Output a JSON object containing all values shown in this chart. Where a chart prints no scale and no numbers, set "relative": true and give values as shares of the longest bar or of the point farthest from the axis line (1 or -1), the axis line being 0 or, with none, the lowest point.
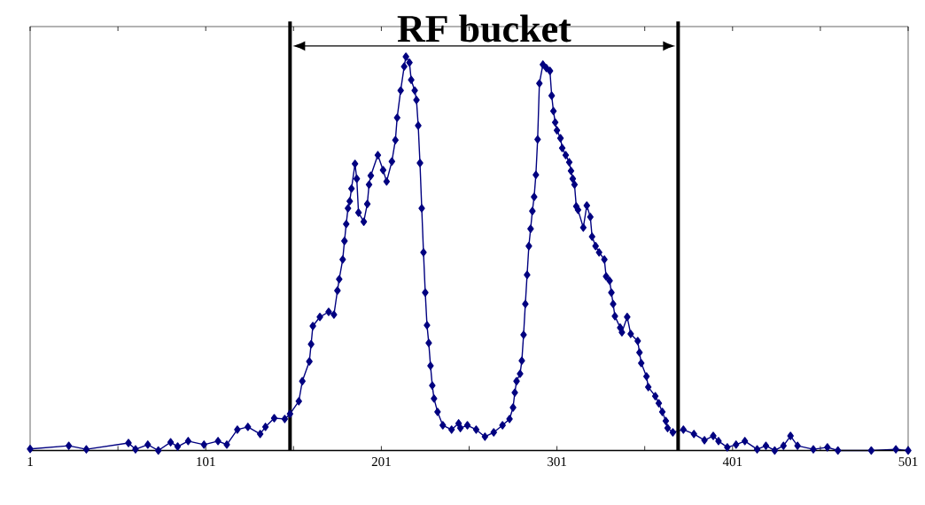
{
  "chart_data": {
    "type": "line",
    "relative": true,
    "x": [
      1,
      23,
      33,
      57,
      61,
      68,
      74,
      81,
      85,
      91,
      100,
      108,
      113,
      119,
      125,
      132,
      135,
      140,
      146,
      149,
      154,
      156,
      160,
      161,
      162,
      166,
      171,
      174,
      176,
      177,
      179,
      180,
      181,
      182,
      183,
      184,
      186,
      187,
      188,
      191,
      193,
      194,
      195,
      199,
      202,
      204,
      207,
      209,
      210,
      212,
      214,
      215,
      217,
      218,
      220,
      221,
      222,
      223,
      224,
      225,
      226,
      227,
      228,
      229,
      230,
      231,
      233,
      236,
      241,
      245,
      246,
      250,
      255,
      260,
      265,
      270,
      274,
      276,
      277,
      278,
      280,
      281,
      282,
      283,
      284,
      285,
      286,
      287,
      288,
      289,
      290,
      291,
      293,
      295,
      297,
      298,
      299,
      300,
      301,
      303,
      304,
      306,
      308,
      309,
      310,
      311,
      312,
      313,
      316,
      318,
      320,
      321,
      323,
      325,
      328,
      329,
      331,
      332,
      333,
      334,
      337,
      338,
      341,
      343,
      347,
      348,
      349,
      352,
      353,
      357,
      359,
      361,
      363,
      364,
      367,
      373,
      379,
      385,
      390,
      393,
      398,
      403,
      408,
      415,
      420,
      425,
      430,
      434,
      438,
      447,
      455,
      461,
      480,
      494,
      501
    ],
    "values": [
      0.004,
      0.012,
      0.003,
      0.019,
      0.003,
      0.015,
      0.0,
      0.021,
      0.01,
      0.024,
      0.015,
      0.024,
      0.015,
      0.053,
      0.06,
      0.042,
      0.06,
      0.082,
      0.08,
      0.093,
      0.125,
      0.176,
      0.226,
      0.27,
      0.316,
      0.339,
      0.352,
      0.345,
      0.406,
      0.435,
      0.485,
      0.532,
      0.575,
      0.615,
      0.633,
      0.665,
      0.728,
      0.69,
      0.604,
      0.581,
      0.626,
      0.675,
      0.698,
      0.75,
      0.712,
      0.683,
      0.734,
      0.788,
      0.845,
      0.914,
      0.975,
      1.0,
      0.985,
      0.941,
      0.914,
      0.89,
      0.825,
      0.73,
      0.615,
      0.503,
      0.401,
      0.318,
      0.273,
      0.215,
      0.165,
      0.132,
      0.098,
      0.064,
      0.053,
      0.069,
      0.057,
      0.064,
      0.053,
      0.035,
      0.046,
      0.064,
      0.08,
      0.109,
      0.147,
      0.176,
      0.195,
      0.228,
      0.294,
      0.372,
      0.446,
      0.519,
      0.563,
      0.608,
      0.644,
      0.7,
      0.79,
      0.932,
      0.98,
      0.971,
      0.964,
      0.901,
      0.862,
      0.833,
      0.813,
      0.793,
      0.768,
      0.75,
      0.732,
      0.71,
      0.69,
      0.675,
      0.62,
      0.611,
      0.566,
      0.622,
      0.593,
      0.543,
      0.519,
      0.503,
      0.485,
      0.442,
      0.431,
      0.401,
      0.372,
      0.341,
      0.312,
      0.3,
      0.339,
      0.296,
      0.278,
      0.249,
      0.222,
      0.188,
      0.161,
      0.138,
      0.12,
      0.098,
      0.075,
      0.057,
      0.046,
      0.053,
      0.042,
      0.026,
      0.037,
      0.024,
      0.008,
      0.015,
      0.024,
      0.003,
      0.012,
      0.0,
      0.012,
      0.037,
      0.012,
      0.003,
      0.008,
      0.0,
      0.0,
      0.003,
      0.0
    ],
    "color": "#000080",
    "marker": "diamond",
    "line_style": "solid",
    "xlim": [
      1,
      501
    ],
    "xticks": [
      1,
      {
        "value": 51,
        "label": null
      },
      101,
      {
        "value": 151,
        "label": null
      },
      201,
      {
        "value": 251,
        "label": null
      },
      301,
      {
        "value": 351,
        "label": null
      },
      401,
      {
        "value": 451,
        "label": null
      },
      501
    ],
    "ref_lines": [
      {
        "axis": "x",
        "value": 149,
        "color": "#000000"
      },
      {
        "axis": "x",
        "value": 370,
        "color": "#000000"
      }
    ],
    "annotations": [
      "RF bucket"
    ]
  }
}
